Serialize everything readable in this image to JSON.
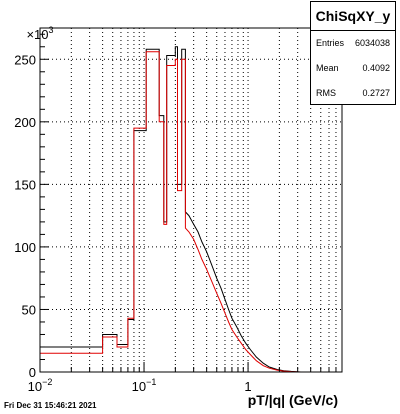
{
  "chart_data": {
    "type": "line",
    "title": "ChiSqXY_y",
    "xlabel": "pT/|q| (GeV/c)",
    "ylabel": "",
    "x_scale": "log",
    "xlim": [
      0.01,
      8
    ],
    "ylim": [
      0,
      275000
    ],
    "y_exponent_label": "×10",
    "y_exponent_power": "3",
    "y_ticks": [
      {
        "value": 0,
        "label": "0"
      },
      {
        "value": 50000,
        "label": "50"
      },
      {
        "value": 100000,
        "label": "100"
      },
      {
        "value": 150000,
        "label": "150"
      },
      {
        "value": 200000,
        "label": "200"
      },
      {
        "value": 250000,
        "label": "250"
      }
    ],
    "x_ticks": [
      {
        "value": 0.01,
        "base": "10",
        "power": "−2"
      },
      {
        "value": 0.1,
        "base": "10",
        "power": "−1"
      },
      {
        "value": 1,
        "base": "1",
        "power": ""
      }
    ],
    "grid": true,
    "stats": {
      "entries_label": "Entries",
      "entries": "6034038",
      "mean_label": "Mean",
      "mean": "0.4092",
      "rms_label": "RMS",
      "rms": "0.2727"
    },
    "timestamp": "Fri Dec 31 15:46:21 2021",
    "series": [
      {
        "color": "#000000",
        "points": [
          [
            0.01,
            20000
          ],
          [
            0.04,
            20000
          ],
          [
            0.04,
            30000
          ],
          [
            0.055,
            30000
          ],
          [
            0.055,
            22000
          ],
          [
            0.07,
            22000
          ],
          [
            0.07,
            42000
          ],
          [
            0.08,
            42000
          ],
          [
            0.08,
            193000
          ],
          [
            0.105,
            193000
          ],
          [
            0.105,
            258000
          ],
          [
            0.14,
            258000
          ],
          [
            0.14,
            205000
          ],
          [
            0.155,
            205000
          ],
          [
            0.155,
            120000
          ],
          [
            0.165,
            120000
          ],
          [
            0.165,
            253000
          ],
          [
            0.2,
            253000
          ],
          [
            0.2,
            260000
          ],
          [
            0.21,
            260000
          ],
          [
            0.21,
            150000
          ],
          [
            0.23,
            150000
          ],
          [
            0.23,
            258000
          ],
          [
            0.25,
            258000
          ],
          [
            0.25,
            128000
          ],
          [
            0.27,
            125000
          ],
          [
            0.3,
            118000
          ],
          [
            0.33,
            112000
          ],
          [
            0.36,
            104000
          ],
          [
            0.4,
            96000
          ],
          [
            0.45,
            85000
          ],
          [
            0.5,
            75000
          ],
          [
            0.55,
            67000
          ],
          [
            0.6,
            58000
          ],
          [
            0.65,
            50000
          ],
          [
            0.7,
            43000
          ],
          [
            0.78,
            36000
          ],
          [
            0.86,
            29000
          ],
          [
            0.95,
            23000
          ],
          [
            1.05,
            18000
          ],
          [
            1.2,
            12000
          ],
          [
            1.4,
            7000
          ],
          [
            1.6,
            4000
          ],
          [
            1.9,
            2000
          ],
          [
            2.2,
            1000
          ],
          [
            2.6,
            500
          ],
          [
            3.2,
            0
          ],
          [
            8,
            0
          ]
        ]
      },
      {
        "color": "#e00000",
        "points": [
          [
            0.01,
            15000
          ],
          [
            0.04,
            15000
          ],
          [
            0.04,
            28000
          ],
          [
            0.055,
            28000
          ],
          [
            0.055,
            20000
          ],
          [
            0.07,
            20000
          ],
          [
            0.07,
            43000
          ],
          [
            0.08,
            43000
          ],
          [
            0.08,
            195000
          ],
          [
            0.105,
            195000
          ],
          [
            0.105,
            256000
          ],
          [
            0.14,
            256000
          ],
          [
            0.14,
            200000
          ],
          [
            0.155,
            200000
          ],
          [
            0.155,
            118000
          ],
          [
            0.165,
            118000
          ],
          [
            0.165,
            245000
          ],
          [
            0.2,
            245000
          ],
          [
            0.2,
            250000
          ],
          [
            0.21,
            250000
          ],
          [
            0.21,
            145000
          ],
          [
            0.23,
            145000
          ],
          [
            0.23,
            250000
          ],
          [
            0.25,
            250000
          ],
          [
            0.25,
            115000
          ],
          [
            0.27,
            112000
          ],
          [
            0.3,
            106000
          ],
          [
            0.33,
            98000
          ],
          [
            0.36,
            90000
          ],
          [
            0.4,
            82000
          ],
          [
            0.45,
            72000
          ],
          [
            0.5,
            63000
          ],
          [
            0.55,
            55000
          ],
          [
            0.6,
            47000
          ],
          [
            0.65,
            40000
          ],
          [
            0.7,
            34000
          ],
          [
            0.78,
            28000
          ],
          [
            0.86,
            23000
          ],
          [
            0.95,
            18000
          ],
          [
            1.05,
            14000
          ],
          [
            1.2,
            9000
          ],
          [
            1.4,
            5000
          ],
          [
            1.6,
            3000
          ],
          [
            1.9,
            1500
          ],
          [
            2.2,
            700
          ],
          [
            2.6,
            300
          ],
          [
            3.2,
            0
          ],
          [
            8,
            0
          ]
        ]
      }
    ]
  }
}
